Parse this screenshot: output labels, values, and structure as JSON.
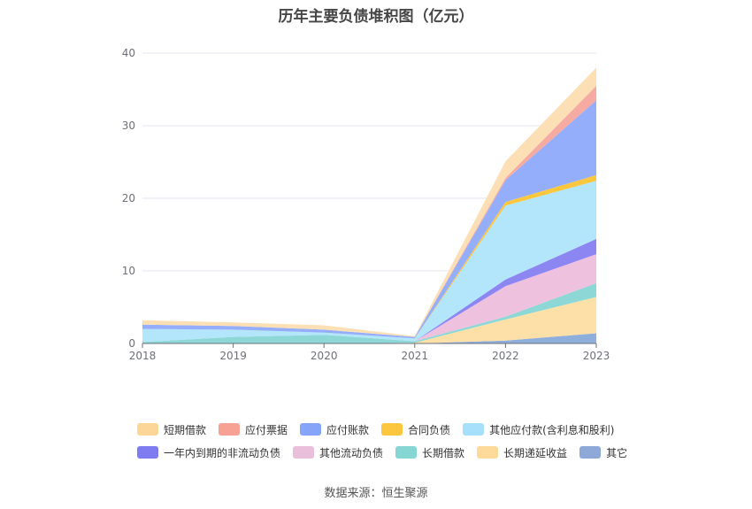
{
  "title": "历年主要负债堆积图（亿元）",
  "source": "数据来源：恒生聚源",
  "chart_data": {
    "type": "area",
    "stacked": true,
    "x": [
      "2018",
      "2019",
      "2020",
      "2021",
      "2022",
      "2023"
    ],
    "ylim": [
      0,
      40
    ],
    "yticks": [
      0,
      10,
      20,
      30,
      40
    ],
    "grid": true,
    "legend_position": "bottom",
    "series": [
      {
        "name": "其它",
        "color": "#8eaedc",
        "values": [
          0,
          0,
          0,
          0,
          0.4,
          1.4
        ]
      },
      {
        "name": "长期递延收益",
        "color": "#fddfa8",
        "values": [
          0,
          0,
          0,
          0.1,
          2.9,
          5.0
        ]
      },
      {
        "name": "长期借款",
        "color": "#8dd8d6",
        "values": [
          0.2,
          0.9,
          1.2,
          0.2,
          0.4,
          1.9
        ]
      },
      {
        "name": "其他流动负债",
        "color": "#eec1de",
        "values": [
          0,
          0,
          0,
          0,
          4.2,
          4.0
        ]
      },
      {
        "name": "一年内到期的非流动负债",
        "color": "#8c86f2",
        "values": [
          0,
          0,
          0,
          0,
          0.9,
          2.1
        ]
      },
      {
        "name": "其他应付款(含利息和股利)",
        "color": "#b3e5fb",
        "values": [
          1.8,
          1.0,
          0.3,
          0.4,
          10.2,
          8.0
        ]
      },
      {
        "name": "合同负债",
        "color": "#fcc63f",
        "values": [
          0,
          0,
          0,
          0,
          0.5,
          0.8
        ]
      },
      {
        "name": "应付账款",
        "color": "#95aefc",
        "values": [
          0.6,
          0.5,
          0.4,
          0.2,
          3.0,
          10.3
        ]
      },
      {
        "name": "应付票据",
        "color": "#f6aba2",
        "values": [
          0,
          0,
          0,
          0,
          0.3,
          2.0
        ]
      },
      {
        "name": "短期借款",
        "color": "#fcdfb4",
        "values": [
          0.6,
          0.5,
          0.6,
          0.1,
          2.3,
          2.5
        ]
      }
    ]
  },
  "legend": {
    "rows": [
      [
        {
          "label": "短期借款",
          "color": "#fcd598"
        },
        {
          "label": "应付票据",
          "color": "#f6a193"
        },
        {
          "label": "应付账款",
          "color": "#86a4f8"
        },
        {
          "label": "合同负债",
          "color": "#fcc63f"
        },
        {
          "label": "其他应付款(含利息和股利)",
          "color": "#a6e0fa"
        }
      ],
      [
        {
          "label": "一年内到期的非流动负债",
          "color": "#7e7cf0"
        },
        {
          "label": "其他流动负债",
          "color": "#eabfdc"
        },
        {
          "label": "长期借款",
          "color": "#86d6d4"
        },
        {
          "label": "长期递延收益",
          "color": "#fdd99a"
        },
        {
          "label": "其它",
          "color": "#8ea9d8"
        }
      ]
    ]
  }
}
